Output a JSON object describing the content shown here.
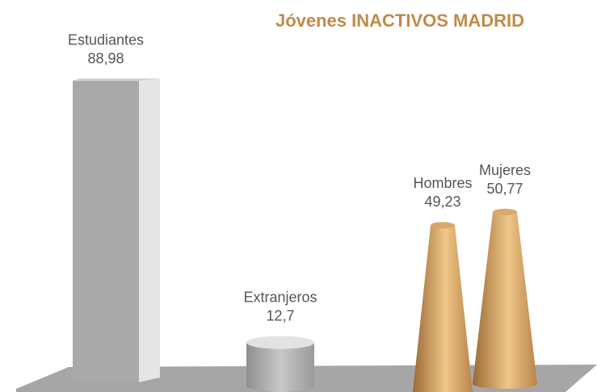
{
  "chart_data": {
    "type": "bar",
    "title": "Jóvenes INACTIVOS MADRID",
    "categories": [
      "Estudiantes",
      "Extranjeros",
      "Hombres",
      "Mujeres"
    ],
    "values": [
      88.98,
      12.7,
      49.23,
      50.77
    ],
    "value_labels": [
      "88,98",
      "12,7",
      "49,23",
      "50,77"
    ],
    "colors": [
      "#a9a9a9",
      "#a9a9a9",
      "#c8975b",
      "#c8975b"
    ],
    "shapes": [
      "box",
      "cylinder",
      "cone",
      "cone"
    ]
  }
}
